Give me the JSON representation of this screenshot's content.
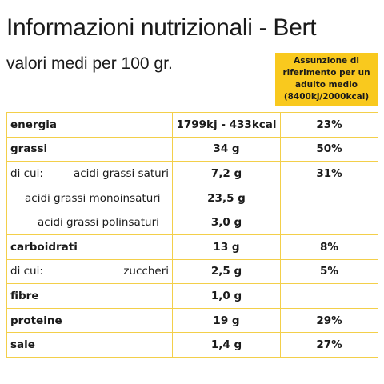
{
  "header": {
    "title": "Informazioni nutrizionali - Bert",
    "subtitle": "valori medi per 100 gr."
  },
  "badge": {
    "lines": [
      "Assunzione di",
      "riferimento per un",
      "adulto medio",
      "(8400kj/2000kcal)"
    ],
    "color": "#f9c91e"
  },
  "table": {
    "border_color": "#f3cf4a",
    "rows": [
      {
        "label": "energia",
        "value": "1799kj - 433kcal",
        "pct": "23%"
      },
      {
        "label": "grassi",
        "value": "34 g",
        "pct": "50%"
      },
      {
        "prefix": "di cui:",
        "label": "acidi grassi saturi",
        "value": "7,2 g",
        "pct": "31%"
      },
      {
        "label": "acidi grassi monoinsaturi",
        "value": "23,5 g",
        "pct": ""
      },
      {
        "label": "acidi grassi polinsaturi",
        "value": "3,0 g",
        "pct": ""
      },
      {
        "label": "carboidrati",
        "value": "13 g",
        "pct": "8%"
      },
      {
        "prefix": "di cui:",
        "label": "zuccheri",
        "value": "2,5 g",
        "pct": "5%"
      },
      {
        "label": "fibre",
        "value": "1,0 g",
        "pct": ""
      },
      {
        "label": "proteine",
        "value": "19 g",
        "pct": "29%"
      },
      {
        "label": "sale",
        "value": "1,4 g",
        "pct": "27%"
      }
    ]
  }
}
